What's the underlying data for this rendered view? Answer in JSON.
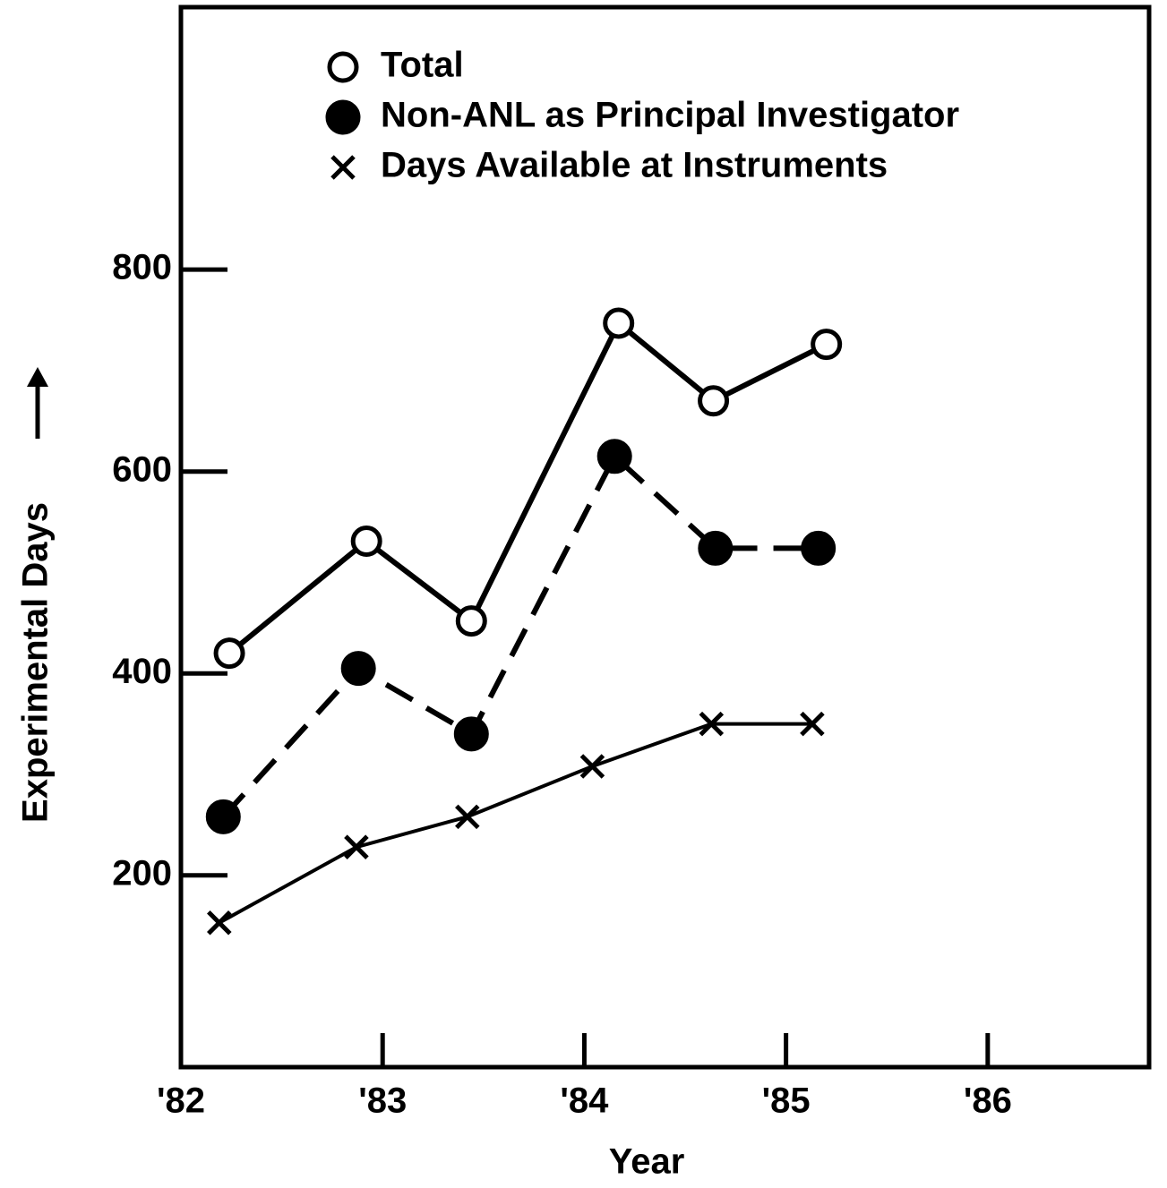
{
  "chart_data": {
    "type": "line",
    "xlabel": "Year",
    "ylabel": "Experimental Days",
    "xlim": [
      1982,
      1986.8
    ],
    "ylim": [
      10,
      1060
    ],
    "xticks": [
      {
        "value": 1982,
        "label": "'82"
      },
      {
        "value": 1983,
        "label": "'83"
      },
      {
        "value": 1984,
        "label": "'84"
      },
      {
        "value": 1985,
        "label": "'85"
      },
      {
        "value": 1986,
        "label": "'86"
      }
    ],
    "yticks": [
      200,
      400,
      600,
      800
    ],
    "grid": false,
    "legend": "upper left",
    "series": [
      {
        "name": "Total",
        "color": "#000000",
        "marker": "open-circle",
        "line_style": "solid",
        "x": [
          1982.24,
          1982.92,
          1983.44,
          1984.17,
          1984.64,
          1985.2
        ],
        "values": [
          420,
          531,
          452,
          747,
          670,
          726
        ]
      },
      {
        "name": "Non-ANL as Principal Investigator",
        "color": "#000000",
        "marker": "filled-circle",
        "line_style": "dashed",
        "x": [
          1982.21,
          1982.88,
          1983.44,
          1984.15,
          1984.65,
          1985.16
        ],
        "values": [
          258,
          405,
          340,
          615,
          524,
          524
        ]
      },
      {
        "name": "Days Available at Instruments",
        "color": "#000000",
        "marker": "cross",
        "line_style": "solid",
        "x": [
          1982.19,
          1982.87,
          1983.42,
          1984.04,
          1984.63,
          1985.13
        ],
        "values": [
          153,
          228,
          258,
          308,
          350,
          350
        ]
      }
    ]
  }
}
